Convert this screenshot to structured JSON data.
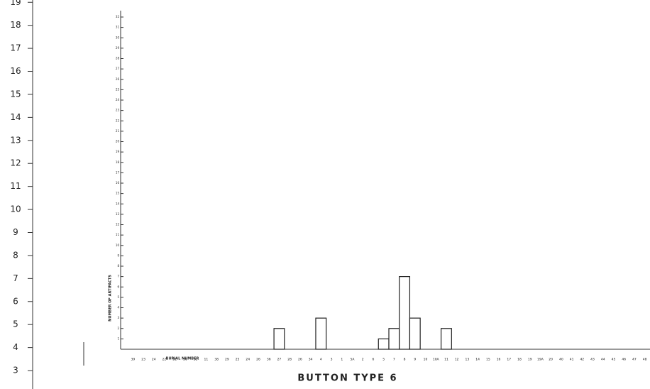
{
  "chart_data": [
    {
      "type": "bar",
      "title": "BUTTON TYPE 6",
      "y_label": "NUMBER OF ARTIFACTS",
      "x_label": "BURIAL NUMBER",
      "categories": [
        "39",
        "23",
        "24",
        "22",
        "31",
        "30",
        "33",
        "11",
        "38",
        "29",
        "25",
        "24",
        "26",
        "36",
        "27",
        "28",
        "26",
        "34",
        "4",
        "3",
        "1",
        "5A",
        "2",
        "6",
        "5",
        "7",
        "8",
        "9",
        "10",
        "10A",
        "11",
        "12",
        "13",
        "14",
        "15",
        "16",
        "17",
        "18",
        "19",
        "19A",
        "20",
        "40",
        "41",
        "42",
        "43",
        "44",
        "45",
        "46",
        "47",
        "48"
      ],
      "values": [
        0,
        0,
        0,
        0,
        0,
        0,
        0,
        0,
        0,
        0,
        0,
        0,
        0,
        0,
        2,
        0,
        0,
        0,
        3,
        0,
        0,
        0,
        0,
        0,
        1,
        2,
        7,
        3,
        0,
        0,
        2,
        0,
        0,
        0,
        0,
        0,
        0,
        0,
        0,
        0,
        0,
        0,
        0,
        0,
        0,
        0,
        0,
        0,
        0,
        0
      ],
      "color": "#ffffff",
      "ylim": [
        0,
        32
      ],
      "yticks": [
        1,
        2,
        3,
        4,
        5,
        6,
        7,
        8,
        9,
        10,
        11,
        12,
        13,
        14,
        15,
        16,
        17,
        18,
        19,
        20,
        21,
        22,
        23,
        24,
        25,
        26,
        27,
        28,
        29,
        30,
        31,
        32
      ]
    },
    {
      "type": "axis",
      "ylim": [
        2.2,
        19.1
      ],
      "yticks": [
        3,
        4,
        5,
        6,
        7,
        8,
        9,
        10,
        11,
        12,
        13,
        14,
        15,
        16,
        17,
        18,
        19
      ]
    }
  ]
}
